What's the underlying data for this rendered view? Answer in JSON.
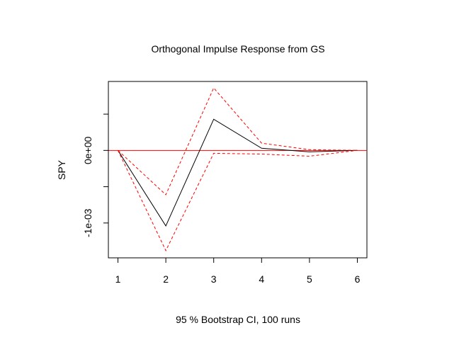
{
  "chart_data": {
    "type": "line",
    "title": "Orthogonal Impulse Response from GS",
    "xlabel": "95 % Bootstrap CI,  100 runs",
    "ylabel": "SPY",
    "x": [
      1,
      2,
      3,
      4,
      5,
      6
    ],
    "xlim": [
      0.8,
      6.2
    ],
    "ylim": [
      -0.00148,
      0.00095
    ],
    "x_ticks": [
      "1",
      "2",
      "3",
      "4",
      "5",
      "6"
    ],
    "y_ticks": [
      {
        "value": -0.001,
        "label": "-1e-03"
      },
      {
        "value": 0.0,
        "label": "0e+00"
      }
    ],
    "series": [
      {
        "values": [
          0.0,
          -0.00104,
          0.00043,
          3e-05,
          -2e-05,
          0.0
        ],
        "color": "#000000",
        "style": "solid"
      },
      {
        "values": [
          0.0,
          -0.00061,
          0.00086,
          0.0001,
          1e-05,
          0.0
        ],
        "color": "#ff0000",
        "style": "dashed"
      },
      {
        "values": [
          0.0,
          -0.00138,
          -4e-05,
          -5e-05,
          -8e-05,
          0.0
        ],
        "color": "#ff0000",
        "style": "dashed"
      }
    ],
    "reference_line": {
      "value": 0.0,
      "color": "#ff0000"
    },
    "grid": false,
    "legend": "none"
  }
}
